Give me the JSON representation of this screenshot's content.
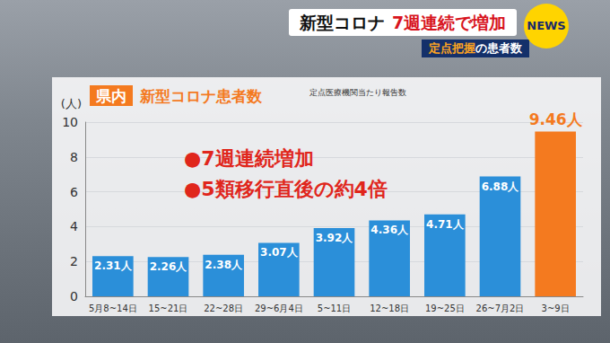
{
  "header": {
    "headline": [
      "新型コロナ",
      "7週連続で増加"
    ],
    "subheadline": [
      "定点把握",
      "の患者数"
    ],
    "logo": "NEWS"
  },
  "chart_data": {
    "type": "bar",
    "title_tag": "県内",
    "title": "新型コロナ患者数",
    "subtitle": "定点医療機関当たり報告数",
    "ylabel": "(人)",
    "annotations": [
      "●7週連続増加",
      "●5類移行直後の約4倍"
    ],
    "categories": [
      "5月8~14日",
      "15~21日",
      "22~28日",
      "29~6月4日",
      "5~11日",
      "12~18日",
      "19~25日",
      "26~7月2日",
      "3~9日"
    ],
    "values": [
      2.31,
      2.26,
      2.38,
      3.07,
      3.92,
      4.36,
      4.71,
      6.88,
      9.46
    ],
    "value_labels": [
      "2.31人",
      "2.26人",
      "2.38人",
      "3.07人",
      "3.92人",
      "4.36人",
      "4.71人",
      "6.88人",
      "9.46人"
    ],
    "colors": [
      "#2b8fd9",
      "#2b8fd9",
      "#2b8fd9",
      "#2b8fd9",
      "#2b8fd9",
      "#2b8fd9",
      "#2b8fd9",
      "#2b8fd9",
      "#f47a1f"
    ],
    "ylim": [
      0,
      10
    ],
    "yticks": [
      0,
      2,
      4,
      6,
      8,
      10
    ],
    "grid": true,
    "data_labels": true
  }
}
